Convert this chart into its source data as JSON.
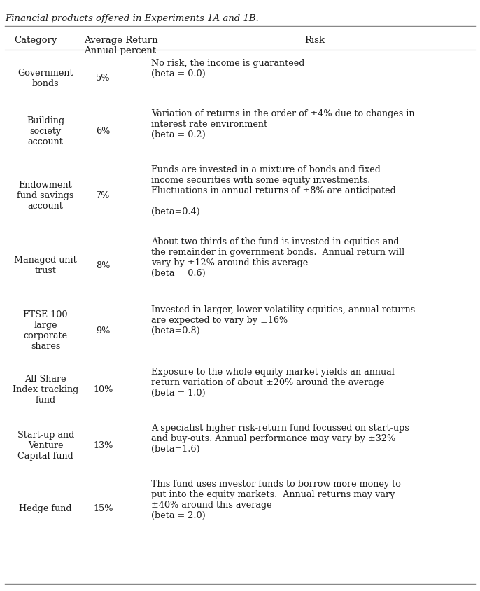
{
  "title": "Financial products offered in Experiments 1A and 1B.",
  "title_fontsize": 9.5,
  "col_headers": [
    "Category",
    "Average Return\nAnnual percent",
    "Risk"
  ],
  "col_header_fontsize": 9.5,
  "body_fontsize": 9.2,
  "rows": [
    {
      "category": "Government\nbonds",
      "return": "5%",
      "risk": "No risk, the income is guaranteed\n(beta = 0.0)"
    },
    {
      "category": "Building\nsociety\naccount",
      "return": "6%",
      "risk": "Variation of returns in the order of ±4% due to changes in\ninterest rate environment\n(beta = 0.2)"
    },
    {
      "category": "Endowment\nfund savings\naccount",
      "return": "7%",
      "risk": "Funds are invested in a mixture of bonds and fixed\nincome securities with some equity investments.\nFluctuations in annual returns of ±8% are anticipated\n\n(beta=0.4)"
    },
    {
      "category": "Managed unit\ntrust",
      "return": "8%",
      "risk": "About two thirds of the fund is invested in equities and\nthe remainder in government bonds.  Annual return will\nvary by ±12% around this average\n(beta = 0.6)"
    },
    {
      "category": "FTSE 100\nlarge\ncorporate\nshares",
      "return": "9%",
      "risk": "Invested in larger, lower volatility equities, annual returns\nare expected to vary by ±16%\n(beta=0.8)"
    },
    {
      "category": "All Share\nIndex tracking\nfund",
      "return": "10%",
      "risk": "Exposure to the whole equity market yields an annual\nreturn variation of about ±20% around the average\n(beta = 1.0)"
    },
    {
      "category": "Start-up and\nVenture\nCapital fund",
      "return": "13%",
      "risk": "A specialist higher risk-return fund focussed on start-ups\nand buy-outs. Annual performance may vary by ±32%\n(beta=1.6)"
    },
    {
      "category": "Hedge fund",
      "return": "15%",
      "risk": "This fund uses investor funds to borrow more money to\nput into the equity markets.  Annual returns may vary\n±40% around this average\n(beta = 2.0)"
    }
  ],
  "bg_color": "#ffffff",
  "text_color": "#1a1a1a",
  "line_color": "#888888",
  "fig_width": 6.86,
  "fig_height": 8.44
}
